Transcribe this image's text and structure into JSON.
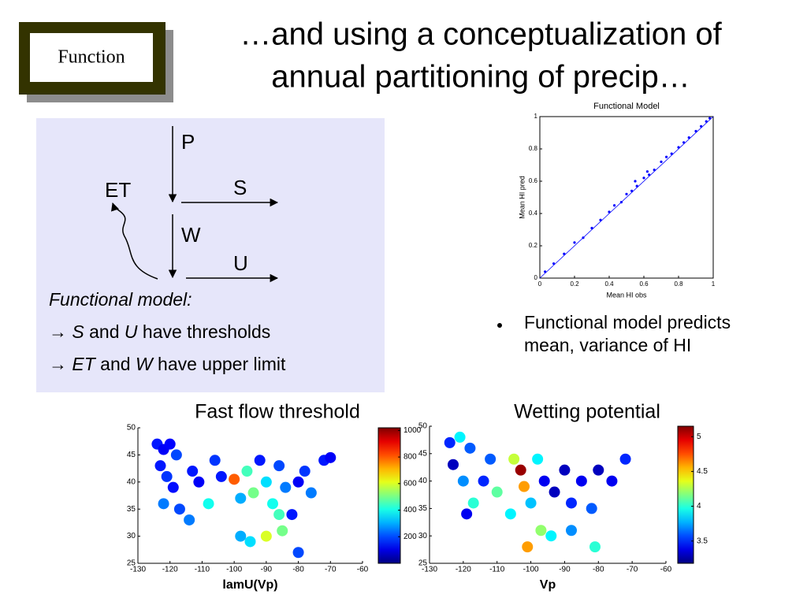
{
  "header": {
    "badge": "Function",
    "title": [
      "…and using a conceptualization of",
      "annual partitioning of precip…"
    ]
  },
  "diagram": {
    "P": "P",
    "S": "S",
    "ET": "ET",
    "W": "W",
    "U": "U",
    "model_heading": "Functional model:",
    "model_lines": [
      [
        "→ ",
        "S",
        " and ",
        "U",
        " have thresholds"
      ],
      [
        "→ ",
        "ET",
        " and ",
        "W",
        " have upper limit"
      ]
    ]
  },
  "bullet": [
    "Functional model predicts",
    "mean, variance of HI"
  ],
  "chart_data": [
    {
      "type": "scatter",
      "title": "Functional Model",
      "xlabel": "Mean HI obs",
      "ylabel": "Mean HI pred",
      "color": "#0000ff",
      "x": [
        0.03,
        0.08,
        0.14,
        0.2,
        0.25,
        0.3,
        0.35,
        0.4,
        0.43,
        0.47,
        0.5,
        0.53,
        0.56,
        0.6,
        0.63,
        0.66,
        0.7,
        0.73,
        0.76,
        0.8,
        0.83,
        0.86,
        0.9,
        0.93,
        0.96,
        0.98,
        0.55,
        0.62
      ],
      "y": [
        0.04,
        0.09,
        0.15,
        0.22,
        0.25,
        0.31,
        0.36,
        0.41,
        0.45,
        0.47,
        0.52,
        0.54,
        0.57,
        0.62,
        0.64,
        0.67,
        0.72,
        0.75,
        0.77,
        0.81,
        0.84,
        0.87,
        0.91,
        0.94,
        0.97,
        0.99,
        0.6,
        0.66
      ],
      "xlim": [
        0,
        1
      ],
      "ylim": [
        0,
        1
      ],
      "xticks": [
        0,
        0.2,
        0.4,
        0.6,
        0.8,
        1
      ],
      "yticks": [
        0,
        0.2,
        0.4,
        0.6,
        0.8,
        1
      ]
    },
    {
      "type": "map",
      "title": "Fast flow threshold",
      "xlabel": "lamU(Vp)",
      "x": [
        -124,
        -122,
        -120,
        -118,
        -123,
        -121,
        -119,
        -122,
        -117,
        -113,
        -111,
        -114,
        -106,
        -104,
        -100,
        -98,
        -96,
        -94,
        -92,
        -90,
        -88,
        -86,
        -84,
        -82,
        -80,
        -78,
        -76,
        -72,
        -70,
        -98,
        -95,
        -90,
        -85,
        -80,
        -86,
        -108
      ],
      "y": [
        47,
        46,
        47,
        45,
        43,
        41,
        39,
        36,
        35,
        42,
        40,
        33,
        44,
        41,
        40.5,
        37,
        42,
        38,
        44,
        40,
        36,
        43,
        39,
        34,
        40,
        42,
        38,
        44,
        44.5,
        30,
        29,
        30,
        31,
        27,
        34,
        36
      ],
      "c": [
        150,
        120,
        130,
        200,
        150,
        180,
        140,
        250,
        200,
        150,
        120,
        250,
        180,
        150,
        800,
        300,
        450,
        500,
        150,
        350,
        400,
        200,
        250,
        150,
        120,
        180,
        250,
        150,
        120,
        300,
        350,
        600,
        500,
        200,
        450,
        400
      ],
      "xlim": [
        -130,
        -60
      ],
      "ylim": [
        25,
        50
      ],
      "xticks": [
        -130,
        -120,
        -110,
        -100,
        -90,
        -80,
        -70,
        -60
      ],
      "yticks": [
        25,
        30,
        35,
        40,
        45,
        50
      ],
      "clim": [
        0,
        1020
      ],
      "cticks": [
        200,
        400,
        600,
        800,
        1000
      ]
    },
    {
      "type": "map",
      "title": "Wetting potential",
      "xlabel": "Vp",
      "x": [
        -124,
        -121,
        -118,
        -123,
        -120,
        -117,
        -119,
        -112,
        -110,
        -105,
        -103,
        -102,
        -100,
        -98,
        -96,
        -93,
        -90,
        -88,
        -85,
        -82,
        -80,
        -76,
        -72,
        -97,
        -101,
        -94,
        -88,
        -81,
        -106,
        -114
      ],
      "y": [
        47,
        48,
        46,
        43,
        40,
        36,
        34,
        44,
        38,
        44,
        42,
        39,
        36,
        44,
        40,
        38,
        42,
        36,
        40,
        35,
        42,
        40,
        44,
        31,
        28,
        30,
        31,
        28,
        34,
        40
      ],
      "c": [
        3.5,
        3.9,
        3.6,
        3.3,
        3.7,
        4.0,
        3.4,
        3.6,
        4.1,
        4.3,
        5.1,
        4.6,
        3.8,
        3.9,
        3.4,
        3.3,
        3.3,
        3.5,
        3.4,
        3.6,
        3.3,
        3.4,
        3.5,
        4.2,
        4.6,
        3.9,
        3.7,
        4.0,
        3.9,
        3.5
      ],
      "xlim": [
        -130,
        -60
      ],
      "ylim": [
        25,
        50
      ],
      "xticks": [
        -130,
        -120,
        -110,
        -100,
        -90,
        -80,
        -70,
        -60
      ],
      "yticks": [
        25,
        30,
        35,
        40,
        45,
        50
      ],
      "clim": [
        3.18,
        5.15
      ],
      "cticks": [
        3.5,
        4,
        4.5,
        5
      ]
    }
  ]
}
